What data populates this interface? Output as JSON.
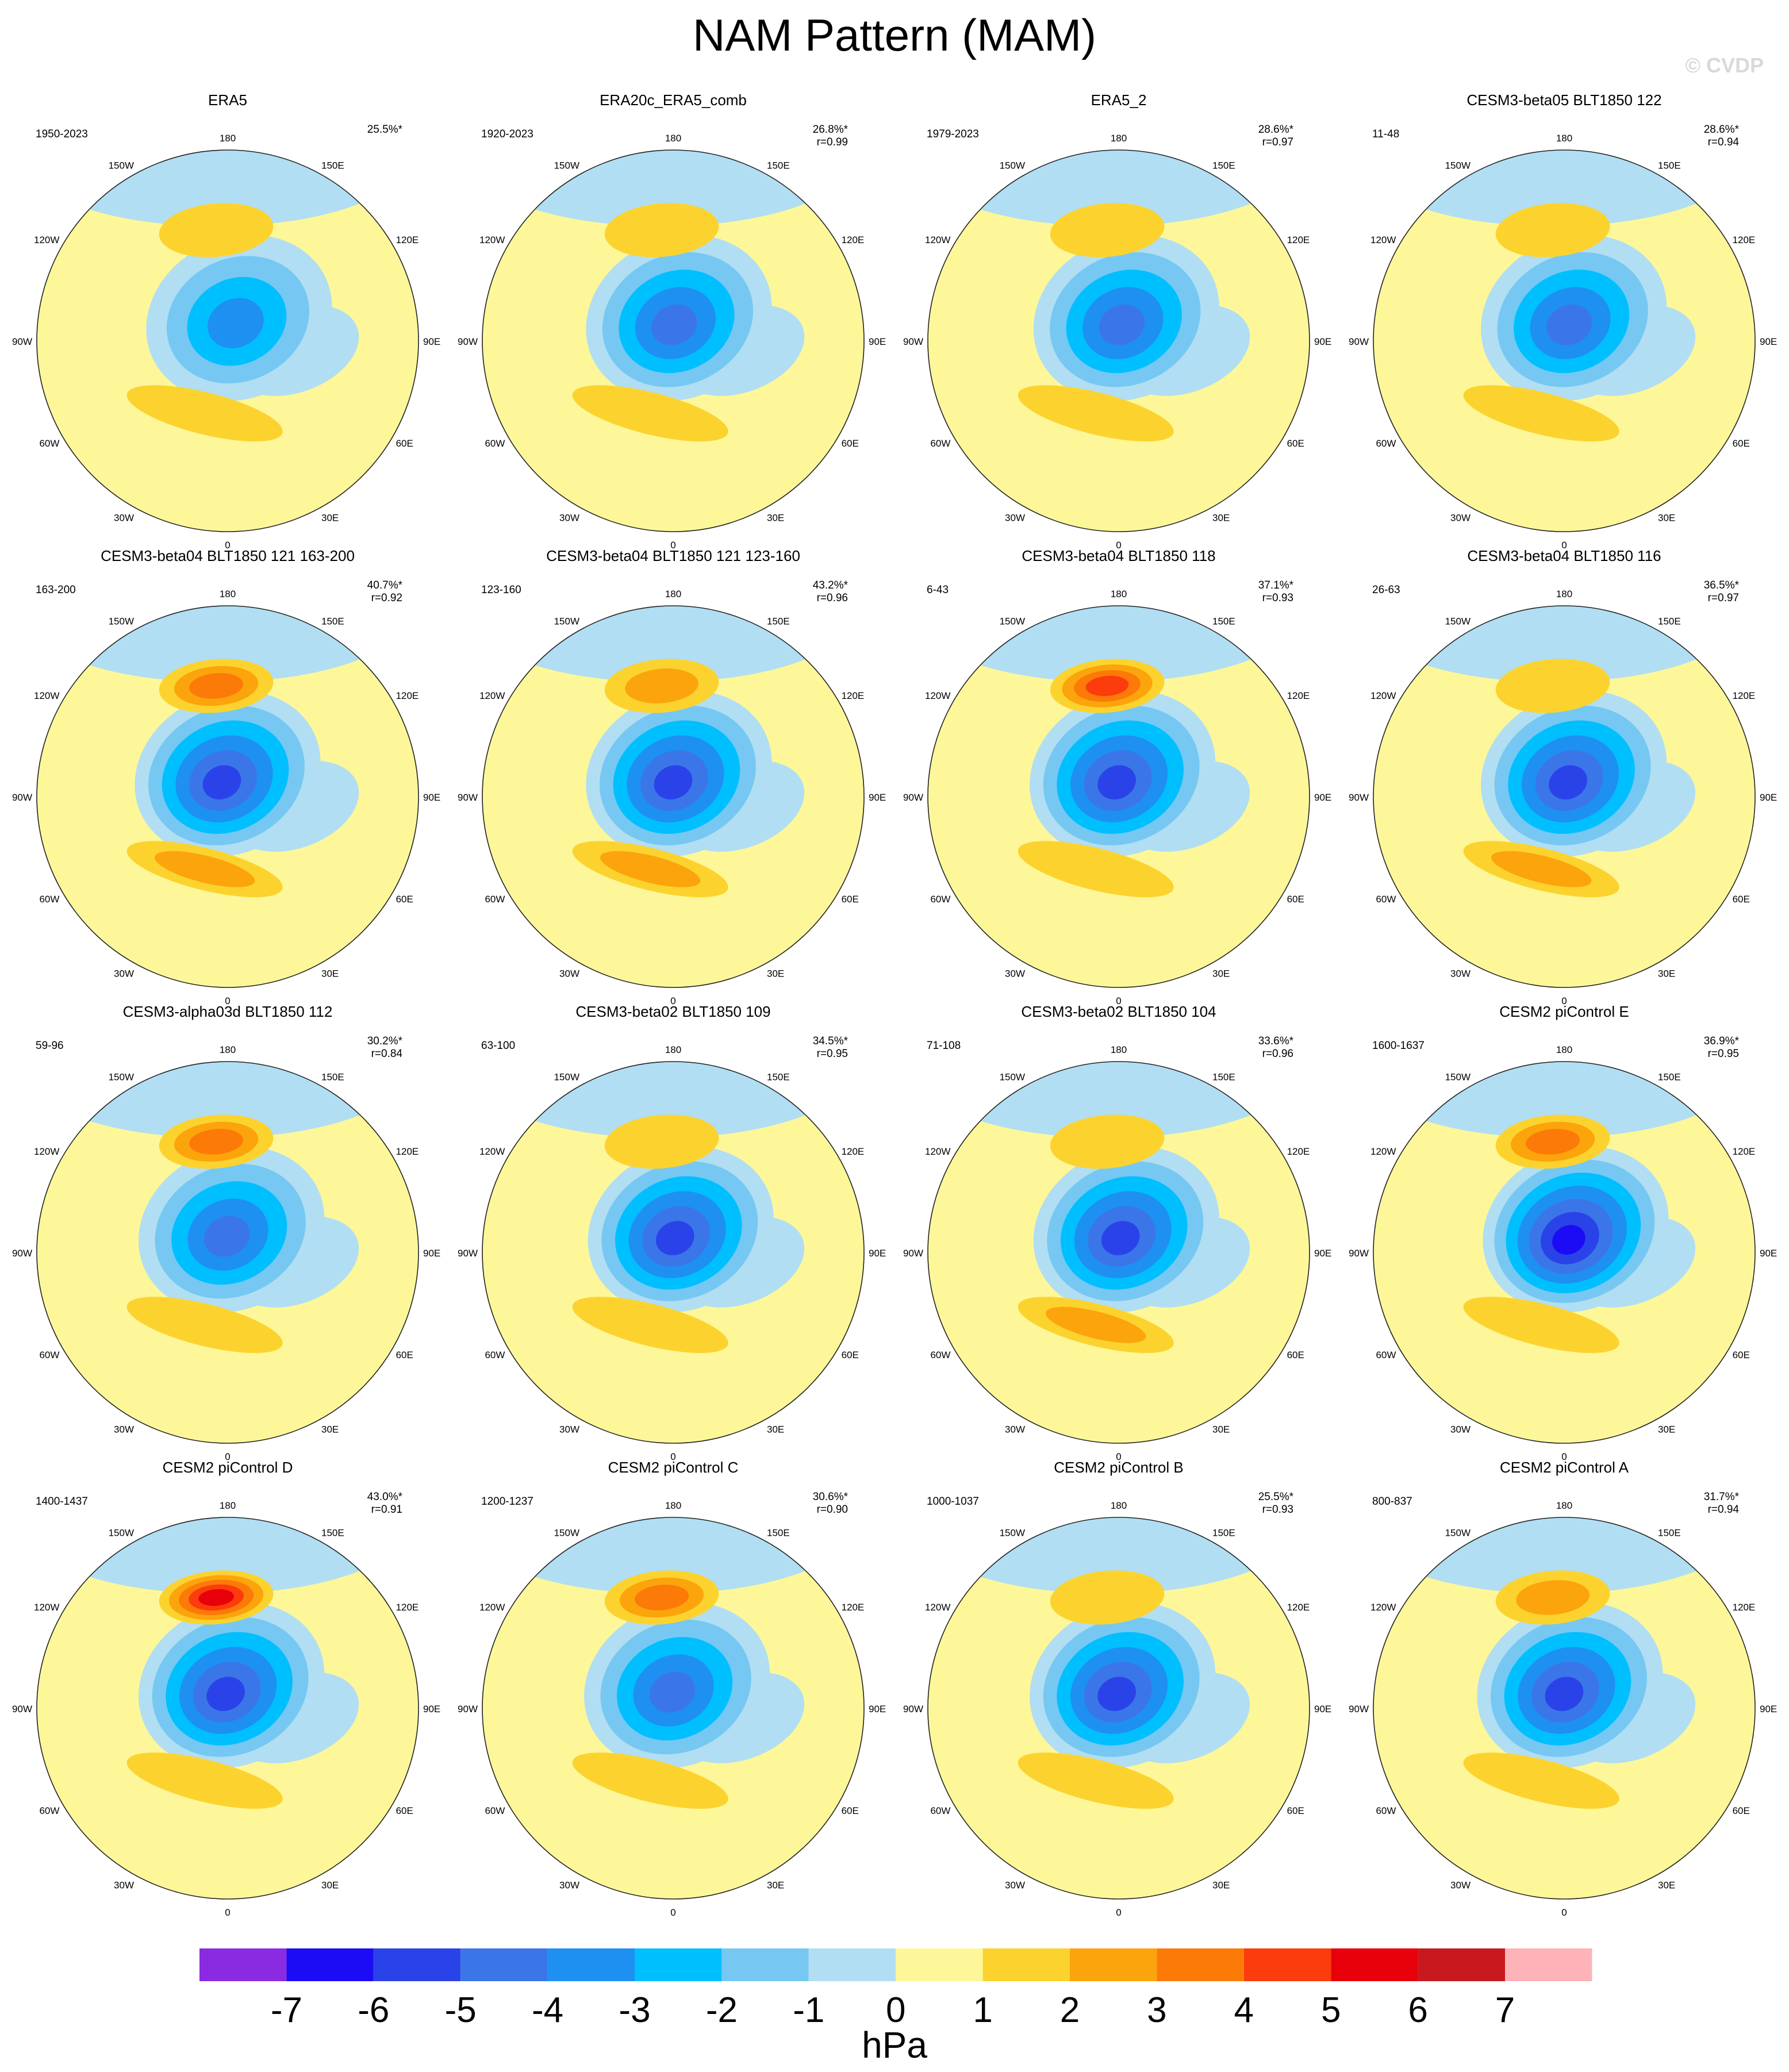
{
  "title": "NAM Pattern (MAM)",
  "watermark": "© CVDP",
  "lon_labels": [
    "180",
    "150E",
    "120E",
    "90E",
    "60E",
    "30E",
    "0",
    "30W",
    "60W",
    "90W",
    "120W",
    "150W"
  ],
  "panels": [
    {
      "title": "ERA5",
      "years": "1950-2023",
      "pct": "25.5%*",
      "r": "",
      "high_pac": 1,
      "high_atl": 1,
      "low": 3,
      "low_shift": 0.06
    },
    {
      "title": "ERA20c_ERA5_comb",
      "years": "1920-2023",
      "pct": "26.8%*",
      "r": "r=0.99",
      "high_pac": 1,
      "high_atl": 1,
      "low": 4,
      "low_shift": 0.03
    },
    {
      "title": "ERA5_2",
      "years": "1979-2023",
      "pct": "28.6%*",
      "r": "r=0.97",
      "high_pac": 1,
      "high_atl": 1,
      "low": 4,
      "low_shift": 0.04
    },
    {
      "title": "CESM3-beta05 BLT1850 122",
      "years": "11-48",
      "pct": "28.6%*",
      "r": "r=0.94",
      "high_pac": 1,
      "high_atl": 1,
      "low": 4,
      "low_shift": 0.05
    },
    {
      "title": "CESM3-beta04 BLT1850 121 163-200",
      "years": "163-200",
      "pct": "40.7%*",
      "r": "r=0.92",
      "high_pac": 3,
      "high_atl": 2,
      "low": 5,
      "low_shift": 0.0
    },
    {
      "title": "CESM3-beta04 BLT1850 121 123-160",
      "years": "123-160",
      "pct": "43.2%*",
      "r": "r=0.96",
      "high_pac": 2,
      "high_atl": 2,
      "low": 5,
      "low_shift": 0.03
    },
    {
      "title": "CESM3-beta04 BLT1850 118",
      "years": "6-43",
      "pct": "37.1%*",
      "r": "r=0.93",
      "high_pac": 4,
      "high_atl": 1,
      "low": 5,
      "low_shift": 0.02
    },
    {
      "title": "CESM3-beta04 BLT1850 116",
      "years": "26-63",
      "pct": "36.5%*",
      "r": "r=0.97",
      "high_pac": 1,
      "high_atl": 2,
      "low": 5,
      "low_shift": 0.05
    },
    {
      "title": "CESM3-alpha03d BLT1850 112",
      "years": "59-96",
      "pct": "30.2%*",
      "r": "r=0.84",
      "high_pac": 3,
      "high_atl": 1,
      "low": 4,
      "low_shift": 0.02
    },
    {
      "title": "CESM3-beta02 BLT1850 109",
      "years": "63-100",
      "pct": "34.5%*",
      "r": "r=0.95",
      "high_pac": 1,
      "high_atl": 1,
      "low": 5,
      "low_shift": 0.04
    },
    {
      "title": "CESM3-beta02 BLT1850 104",
      "years": "71-108",
      "pct": "33.6%*",
      "r": "r=0.96",
      "high_pac": 1,
      "high_atl": 2,
      "low": 5,
      "low_shift": 0.04
    },
    {
      "title": "CESM2 piControl E",
      "years": "1600-1637",
      "pct": "36.9%*",
      "r": "r=0.95",
      "high_pac": 3,
      "high_atl": 1,
      "low": 6,
      "low_shift": 0.06
    },
    {
      "title": "CESM2 piControl D",
      "years": "1400-1437",
      "pct": "43.0%*",
      "r": "r=0.91",
      "high_pac": 5,
      "high_atl": 1,
      "low": 5,
      "low_shift": 0.02
    },
    {
      "title": "CESM2 piControl C",
      "years": "1200-1237",
      "pct": "30.6%*",
      "r": "r=0.90",
      "high_pac": 3,
      "high_atl": 1,
      "low": 4,
      "low_shift": 0.02
    },
    {
      "title": "CESM2 piControl B",
      "years": "1000-1037",
      "pct": "25.5%*",
      "r": "r=0.93",
      "high_pac": 1,
      "high_atl": 1,
      "low": 5,
      "low_shift": 0.02
    },
    {
      "title": "CESM2 piControl A",
      "years": "800-837",
      "pct": "31.7%*",
      "r": "r=0.94",
      "high_pac": 2,
      "high_atl": 1,
      "low": 5,
      "low_shift": 0.03
    }
  ],
  "colorbar": {
    "unit": "hPa",
    "labels": [
      "-7",
      "-6",
      "-5",
      "-4",
      "-3",
      "-2",
      "-1",
      "0",
      "1",
      "2",
      "3",
      "4",
      "5",
      "6",
      "7"
    ],
    "colors": [
      "#8a2be2",
      "#1c0bf5",
      "#2a43e8",
      "#3b76e8",
      "#1e90f2",
      "#00bfff",
      "#76c8f2",
      "#b1def2",
      "#fdf79a",
      "#fcd32e",
      "#fca40c",
      "#fc7a08",
      "#fc3c0c",
      "#e8000a",
      "#c81a1e",
      "#fdb3b8"
    ],
    "neg_colors": [
      "#b1def2",
      "#76c8f2",
      "#00bfff",
      "#1e90f2",
      "#3b76e8",
      "#2a43e8",
      "#1c0bf5"
    ],
    "pos_colors": [
      "#fdf79a",
      "#fcd32e",
      "#fca40c",
      "#fc7a08",
      "#fc3c0c",
      "#e8000a",
      "#c81a1e"
    ]
  }
}
